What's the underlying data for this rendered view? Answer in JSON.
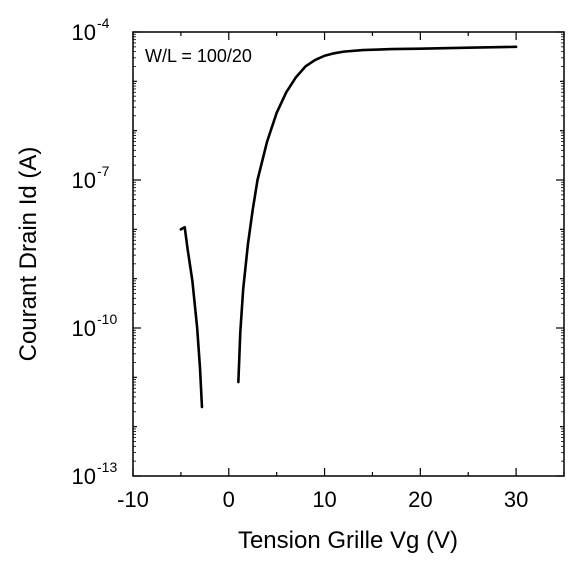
{
  "chart_data": {
    "type": "line",
    "xlabel": "Tension Grille Vg (V)",
    "ylabel": "Courant Drain Id (A)",
    "annotation": "W/L = 100/20",
    "xlim": [
      -10,
      35
    ],
    "ylim_log10": [
      -13,
      -4
    ],
    "yscale": "log",
    "grid": false,
    "x_ticks": [
      -10,
      0,
      10,
      20,
      30
    ],
    "x_tick_labels": [
      "-10",
      "0",
      "10",
      "20",
      "30"
    ],
    "y_tick_exponents": [
      -13,
      -10,
      -7,
      -4
    ],
    "y_tick_base": "10",
    "y_tick_exp_labels": [
      "-13",
      "-10",
      "-7",
      "-4"
    ],
    "series": [
      {
        "segments": [
          [
            {
              "x": -5.0,
              "y": 1e-08
            },
            {
              "x": -4.6,
              "y": 1.1e-08
            },
            {
              "x": -4.3,
              "y": 4e-09
            },
            {
              "x": -3.8,
              "y": 9e-10
            },
            {
              "x": -3.3,
              "y": 1e-10
            },
            {
              "x": -3.0,
              "y": 1.5e-11
            },
            {
              "x": -2.8,
              "y": 2.5e-12
            }
          ],
          [
            {
              "x": 1.0,
              "y": 8e-12
            },
            {
              "x": 1.2,
              "y": 8e-11
            },
            {
              "x": 1.5,
              "y": 6e-10
            },
            {
              "x": 2.0,
              "y": 5e-09
            },
            {
              "x": 2.5,
              "y": 2.5e-08
            },
            {
              "x": 3.0,
              "y": 1e-07
            },
            {
              "x": 4.0,
              "y": 6e-07
            },
            {
              "x": 5.0,
              "y": 2.3e-06
            },
            {
              "x": 6.0,
              "y": 6e-06
            },
            {
              "x": 7.0,
              "y": 1.2e-05
            },
            {
              "x": 8.0,
              "y": 2e-05
            },
            {
              "x": 9.0,
              "y": 2.7e-05
            },
            {
              "x": 10.0,
              "y": 3.3e-05
            },
            {
              "x": 11.0,
              "y": 3.7e-05
            },
            {
              "x": 12.0,
              "y": 4e-05
            },
            {
              "x": 14.0,
              "y": 4.3e-05
            },
            {
              "x": 17.0,
              "y": 4.5e-05
            },
            {
              "x": 20.0,
              "y": 4.6e-05
            },
            {
              "x": 25.0,
              "y": 4.8e-05
            },
            {
              "x": 30.0,
              "y": 5e-05
            }
          ]
        ],
        "color": "#000000"
      }
    ]
  }
}
